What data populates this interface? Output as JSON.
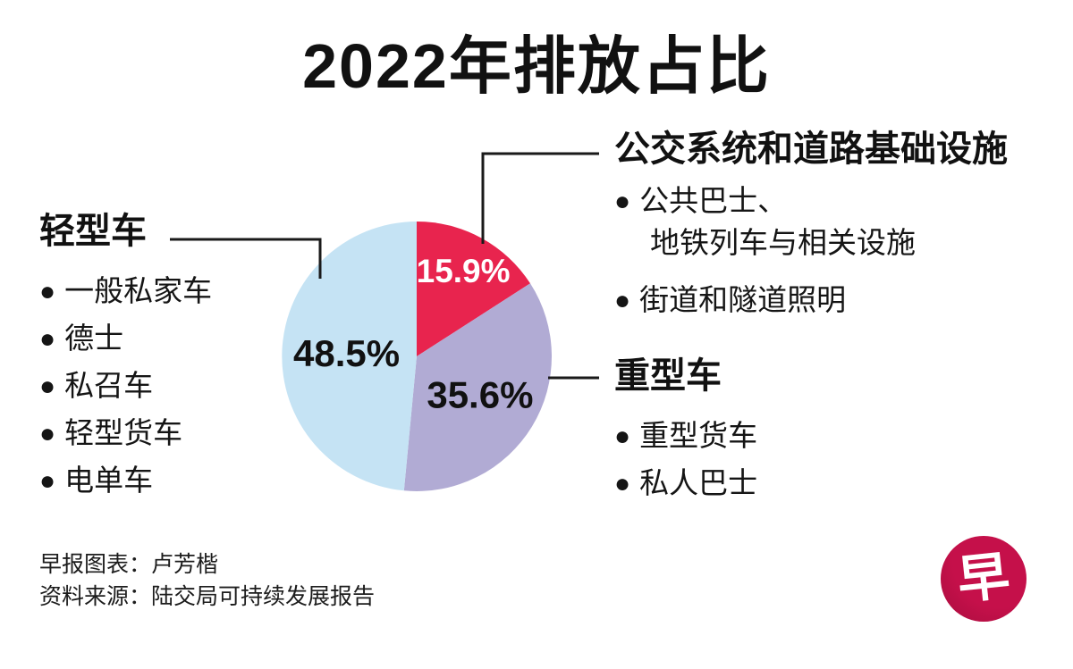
{
  "title": "2022年排放占比",
  "chart_data": {
    "type": "pie",
    "title": "2022年排放占比",
    "start_angle": "12-o-clock",
    "direction": "clockwise",
    "slices": [
      {
        "label": "公交系统和道路基础设施",
        "value": 15.9,
        "display": "15.9%",
        "color": "#e8244e",
        "label_color": "#ffffff",
        "label_size": 37,
        "label_r": 0.72
      },
      {
        "label": "重型车",
        "value": 35.6,
        "display": "35.6%",
        "color": "#b1abd4",
        "label_color": "#111111",
        "label_size": 42,
        "label_r": 0.55
      },
      {
        "label": "轻型车",
        "value": 48.5,
        "display": "48.5%",
        "color": "#c5e3f4",
        "label_color": "#111111",
        "label_size": 42,
        "label_r": 0.52
      }
    ]
  },
  "legend_left": {
    "bullet": "●",
    "header": "轻型车",
    "items": [
      "一般私家车",
      "德士",
      "私召车",
      "轻型货车",
      "电单车"
    ]
  },
  "legend_right_top": {
    "bullet": "●",
    "header": "公交系统和道路基础设施",
    "item1_line1": "公共巴士、",
    "item1_line2": "地铁列车与相关设施",
    "item2": "街道和隧道照明"
  },
  "legend_right_bottom": {
    "bullet": "●",
    "header": "重型车",
    "items": [
      "重型货车",
      "私人巴士"
    ]
  },
  "credits": {
    "line1": "早报图表：卢芳楷",
    "line2": "资料来源：陆交局可持续发展报告"
  },
  "logo": {
    "glyph": "早",
    "bg_color": "#c5104a",
    "fg_color": "#ffffff"
  }
}
